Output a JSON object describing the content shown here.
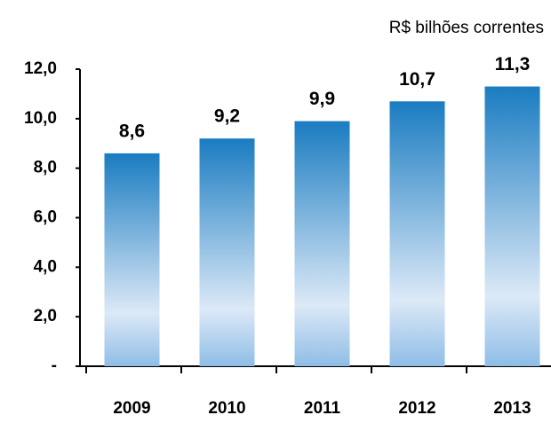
{
  "chart_data": {
    "type": "bar",
    "subtitle": "R$ bilhões correntes",
    "categories": [
      "2009",
      "2010",
      "2011",
      "2012",
      "2013"
    ],
    "values": [
      8.6,
      9.2,
      9.9,
      10.7,
      11.3
    ],
    "value_labels": [
      "8,6",
      "9,2",
      "9,9",
      "10,7",
      "11,3"
    ],
    "color": "#1a7cc1",
    "ylim": [
      0,
      12
    ],
    "yticks": [
      {
        "value": 0,
        "label": "-"
      },
      {
        "value": 2,
        "label": "2,0"
      },
      {
        "value": 4,
        "label": "4,0"
      },
      {
        "value": 6,
        "label": "6,0"
      },
      {
        "value": 8,
        "label": "8,0"
      },
      {
        "value": 10,
        "label": "10,0"
      },
      {
        "value": 12,
        "label": "12,0"
      }
    ],
    "grid": false
  }
}
